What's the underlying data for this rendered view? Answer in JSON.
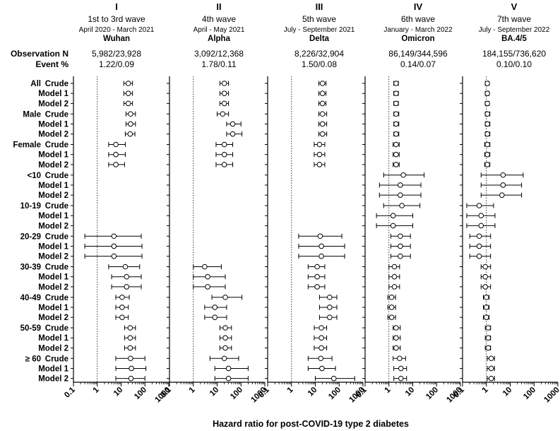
{
  "chart_data": {
    "type": "forest",
    "title": "Hazard ratio for post-COVID-19 type 2 diabetes",
    "xlabel": "Hazard ratio for post-COVID-19 type 2 diabetes",
    "x_scale": "log",
    "xlim": [
      0.1,
      1000
    ],
    "x_ticks": [
      "0.1",
      "1",
      "10",
      "100",
      "1000"
    ],
    "reference_line": 1,
    "row_header_labels": {
      "observation": "Observation N",
      "event": "Event %"
    },
    "row_labels": [
      {
        "group": "All",
        "model": "Crude"
      },
      {
        "group": "",
        "model": "Model 1"
      },
      {
        "group": "",
        "model": "Model 2"
      },
      {
        "group": "Male",
        "model": "Crude"
      },
      {
        "group": "",
        "model": "Model 1"
      },
      {
        "group": "",
        "model": "Model 2"
      },
      {
        "group": "Female",
        "model": "Crude"
      },
      {
        "group": "",
        "model": "Model 1"
      },
      {
        "group": "",
        "model": "Model 2"
      },
      {
        "group": "<10",
        "model": "Crude"
      },
      {
        "group": "",
        "model": "Model 1"
      },
      {
        "group": "",
        "model": "Model 2"
      },
      {
        "group": "10-19",
        "model": "Crude"
      },
      {
        "group": "",
        "model": "Model 1"
      },
      {
        "group": "",
        "model": "Model 2"
      },
      {
        "group": "20-29",
        "model": "Crude"
      },
      {
        "group": "",
        "model": "Model 1"
      },
      {
        "group": "",
        "model": "Model 2"
      },
      {
        "group": "30-39",
        "model": "Crude"
      },
      {
        "group": "",
        "model": "Model 1"
      },
      {
        "group": "",
        "model": "Model 2"
      },
      {
        "group": "40-49",
        "model": "Crude"
      },
      {
        "group": "",
        "model": "Model 1"
      },
      {
        "group": "",
        "model": "Model 2"
      },
      {
        "group": "50-59",
        "model": "Crude"
      },
      {
        "group": "",
        "model": "Model 1"
      },
      {
        "group": "",
        "model": "Model 2"
      },
      {
        "group": "≥ 60",
        "model": "Crude"
      },
      {
        "group": "",
        "model": "Model 1"
      },
      {
        "group": "",
        "model": "Model 2"
      }
    ],
    "panels": [
      {
        "roman": "I",
        "title": "1st to 3rd wave",
        "period": "April 2020 - March 2021",
        "variant": "Wuhan",
        "observation_n": "5,982/23,928",
        "event_pct": "1.22/0.09",
        "rows": [
          [
            20,
            13,
            30
          ],
          [
            20,
            13,
            30
          ],
          [
            20,
            13,
            30
          ],
          [
            25,
            16,
            40
          ],
          [
            25,
            16,
            40
          ],
          [
            24,
            15,
            38
          ],
          [
            6,
            3,
            15
          ],
          [
            6,
            3,
            15
          ],
          [
            6,
            3,
            14
          ],
          null,
          null,
          null,
          null,
          null,
          null,
          [
            5,
            0.3,
            70
          ],
          [
            5,
            0.3,
            75
          ],
          [
            5,
            0.3,
            75
          ],
          [
            15,
            3,
            60
          ],
          [
            17,
            4,
            70
          ],
          [
            17,
            4,
            70
          ],
          [
            11,
            6,
            22
          ],
          [
            11,
            6,
            20
          ],
          [
            11,
            6,
            20
          ],
          [
            24,
            14,
            40
          ],
          [
            24,
            14,
            40
          ],
          [
            24,
            14,
            40
          ],
          [
            25,
            6,
            100
          ],
          [
            27,
            6,
            110
          ],
          [
            26,
            6,
            100
          ]
        ]
      },
      {
        "roman": "II",
        "title": "4th wave",
        "period": "April - May 2021",
        "variant": "Alpha",
        "observation_n": "3,092/12,368",
        "event_pct": "1.78/0.11",
        "rows": [
          [
            20,
            13,
            30
          ],
          [
            20,
            13,
            30
          ],
          [
            20,
            13,
            30
          ],
          [
            17,
            10,
            30
          ],
          [
            45,
            25,
            100
          ],
          [
            45,
            25,
            110
          ],
          [
            20,
            9,
            45
          ],
          [
            20,
            9,
            45
          ],
          [
            20,
            9,
            45
          ],
          null,
          null,
          null,
          null,
          null,
          null,
          null,
          null,
          null,
          [
            3,
            1,
            15
          ],
          [
            4,
            1,
            22
          ],
          [
            4,
            1,
            22
          ],
          [
            22,
            6,
            110
          ],
          [
            8,
            3,
            25
          ],
          [
            8,
            3,
            25
          ],
          [
            22,
            13,
            40
          ],
          [
            22,
            13,
            40
          ],
          [
            22,
            13,
            40
          ],
          [
            20,
            5,
            80
          ],
          [
            30,
            8,
            200
          ],
          [
            30,
            8,
            200
          ]
        ]
      },
      {
        "roman": "III",
        "title": "5th wave",
        "period": "July - September 2021",
        "variant": "Delta",
        "observation_n": "8,226/32,904",
        "event_pct": "1.50/0.08",
        "rows": [
          [
            20,
            14,
            28
          ],
          [
            20,
            14,
            28
          ],
          [
            20,
            14,
            28
          ],
          [
            20,
            14,
            30
          ],
          [
            20,
            14,
            30
          ],
          [
            20,
            14,
            30
          ],
          [
            15,
            9,
            25
          ],
          [
            15,
            9,
            25
          ],
          [
            15,
            9,
            25
          ],
          null,
          null,
          null,
          null,
          null,
          null,
          [
            16,
            2,
            130
          ],
          [
            18,
            2,
            170
          ],
          [
            18,
            2,
            170
          ],
          [
            12,
            5,
            25
          ],
          [
            12,
            5,
            25
          ],
          [
            12,
            5,
            25
          ],
          [
            40,
            15,
            80
          ],
          [
            40,
            15,
            80
          ],
          [
            40,
            15,
            80
          ],
          [
            18,
            9,
            30
          ],
          [
            18,
            9,
            30
          ],
          [
            18,
            9,
            30
          ],
          [
            17,
            5,
            50
          ],
          [
            19,
            5,
            70
          ],
          [
            60,
            10,
            450
          ]
        ]
      },
      {
        "roman": "IV",
        "title": "6th wave",
        "period": "January - March 2022",
        "variant": "Omicron",
        "observation_n": "86,149/344,596",
        "event_pct": "0.14/0.07",
        "rows": [
          [
            2,
            1.6,
            2.5
          ],
          [
            2,
            1.6,
            2.5
          ],
          [
            2,
            1.6,
            2.5
          ],
          [
            2,
            1.6,
            2.6
          ],
          [
            2,
            1.6,
            2.6
          ],
          [
            2,
            1.6,
            2.6
          ],
          [
            2,
            1.5,
            2.7
          ],
          [
            2,
            1.5,
            2.7
          ],
          [
            2,
            1.5,
            2.7
          ],
          [
            4,
            0.6,
            30
          ],
          [
            3,
            0.4,
            22
          ],
          [
            3,
            0.4,
            22
          ],
          [
            3.5,
            0.6,
            20
          ],
          [
            1.5,
            0.3,
            10
          ],
          [
            1.5,
            0.3,
            10
          ],
          [
            3,
            1.2,
            8
          ],
          [
            3,
            1.2,
            8
          ],
          [
            3,
            1.2,
            8
          ],
          [
            1.7,
            1,
            2.8
          ],
          [
            1.7,
            1,
            2.8
          ],
          [
            1.7,
            1,
            2.8
          ],
          [
            1.3,
            0.9,
            1.9
          ],
          [
            1.3,
            0.9,
            1.9
          ],
          [
            1.3,
            0.9,
            1.9
          ],
          [
            2,
            1.5,
            3
          ],
          [
            2,
            1.5,
            3
          ],
          [
            2,
            1.5,
            3
          ],
          [
            2.8,
            1.5,
            5
          ],
          [
            3.2,
            1.6,
            5.5
          ],
          [
            3.2,
            1.6,
            5.5
          ]
        ]
      },
      {
        "roman": "V",
        "title": "7th wave",
        "period": "July - September 2022",
        "variant": "BA.4/5",
        "observation_n": "184,155/736,620",
        "event_pct": "0.10/0.10",
        "rows": [
          [
            1.1,
            0.9,
            1.3
          ],
          [
            1.1,
            0.9,
            1.3
          ],
          [
            1.1,
            0.9,
            1.3
          ],
          [
            1.1,
            0.9,
            1.4
          ],
          [
            1.1,
            0.9,
            1.4
          ],
          [
            1.1,
            0.9,
            1.4
          ],
          [
            1.1,
            0.85,
            1.4
          ],
          [
            1.1,
            0.85,
            1.4
          ],
          [
            1.1,
            0.85,
            1.4
          ],
          [
            5,
            0.6,
            35
          ],
          [
            5,
            0.6,
            30
          ],
          [
            4.5,
            0.6,
            30
          ],
          [
            0.5,
            0.15,
            2
          ],
          [
            0.6,
            0.15,
            2.3
          ],
          [
            0.6,
            0.15,
            2.3
          ],
          [
            0.5,
            0.2,
            1.5
          ],
          [
            0.5,
            0.2,
            1.5
          ],
          [
            0.5,
            0.2,
            1.5
          ],
          [
            0.9,
            0.6,
            1.5
          ],
          [
            0.9,
            0.6,
            1.5
          ],
          [
            0.9,
            0.6,
            1.5
          ],
          [
            1,
            0.75,
            1.3
          ],
          [
            1,
            0.75,
            1.3
          ],
          [
            1,
            0.75,
            1.3
          ],
          [
            1.2,
            0.9,
            1.5
          ],
          [
            1.2,
            0.9,
            1.5
          ],
          [
            1.2,
            0.9,
            1.5
          ],
          [
            1.6,
            1.1,
            2.2
          ],
          [
            1.6,
            1.1,
            2.2
          ],
          [
            1.6,
            1.1,
            2.2
          ]
        ]
      }
    ]
  }
}
